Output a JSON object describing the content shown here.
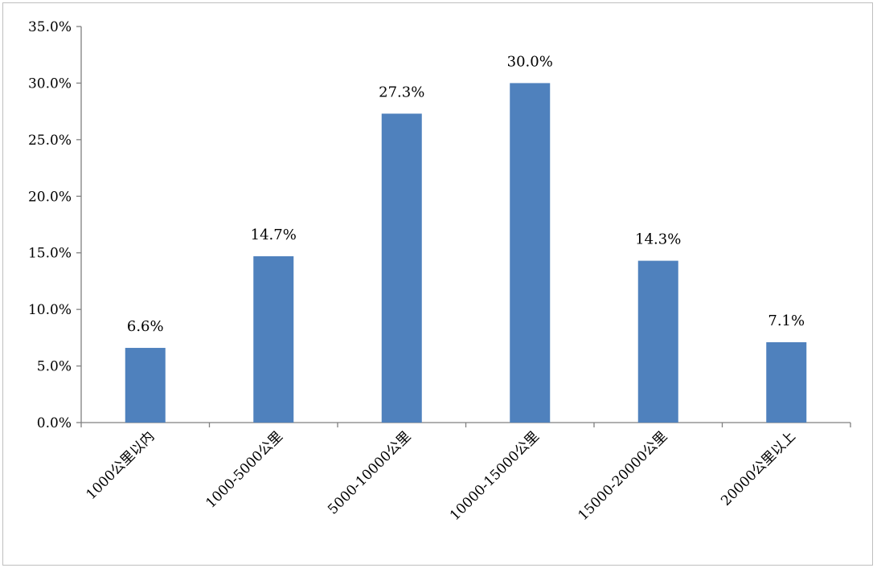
{
  "chart_data": {
    "type": "bar",
    "title": "",
    "xlabel": "",
    "ylabel": "",
    "categories": [
      "1000公里以内",
      "1000-5000公里",
      "5000-10000公里",
      "10000-15000公里",
      "15000-20000公里",
      "20000公里以上"
    ],
    "values": [
      6.6,
      14.7,
      27.3,
      30.0,
      14.3,
      7.1
    ],
    "value_labels": [
      "6.6%",
      "14.7%",
      "27.3%",
      "30.0%",
      "14.3%",
      "7.1%"
    ],
    "ylim": [
      0,
      35
    ],
    "yticks": [
      0,
      5,
      10,
      15,
      20,
      25,
      30,
      35
    ],
    "ytick_labels": [
      "0.0%",
      "5.0%",
      "10.0%",
      "15.0%",
      "20.0%",
      "25.0%",
      "30.0%",
      "35.0%"
    ],
    "bar_color": "#4f81bd",
    "grid": false,
    "legend": "none"
  }
}
